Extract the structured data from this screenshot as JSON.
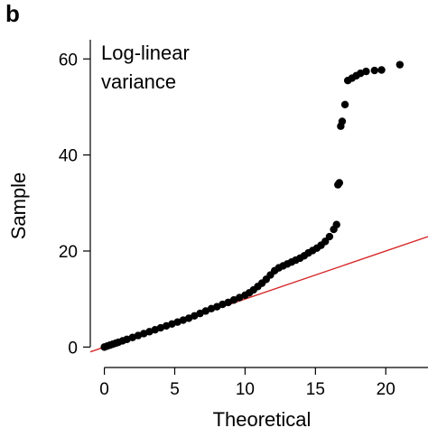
{
  "panel_label": "b",
  "chart_data": {
    "type": "scatter",
    "title": "",
    "annotation_lines": [
      "Log-linear",
      "variance"
    ],
    "xlabel": "Theoretical",
    "ylabel": "Sample",
    "xlim": [
      -1,
      23
    ],
    "ylim": [
      -2,
      64
    ],
    "x_ticks": [
      0,
      5,
      10,
      15,
      20
    ],
    "x_tick_labels": [
      "0",
      "5",
      "10",
      "15",
      "20"
    ],
    "y_ticks": [
      0,
      20,
      40,
      60
    ],
    "y_tick_labels": [
      "0",
      "20",
      "40",
      "60"
    ],
    "grid": false,
    "legend": "none",
    "reference_line": {
      "slope": 1.0,
      "intercept": 0,
      "color": "#d62728"
    },
    "points": {
      "color": "#000000",
      "x": [
        0,
        0.2,
        0.4,
        0.6,
        0.8,
        1,
        1.3,
        1.6,
        2,
        2.4,
        2.8,
        3.2,
        3.6,
        4,
        4.4,
        4.8,
        5.2,
        5.6,
        6,
        6.4,
        6.8,
        7.2,
        7.6,
        8,
        8.4,
        8.8,
        9.2,
        9.6,
        10,
        10.3,
        10.6,
        10.9,
        11.2,
        11.5,
        11.8,
        12.1,
        12.4,
        12.7,
        13,
        13.3,
        13.6,
        13.9,
        14.2,
        14.5,
        14.8,
        15.1,
        15.4,
        15.7,
        16,
        16.3,
        16.5,
        16.6,
        16.7,
        16.8,
        16.9,
        17.1,
        17.3,
        17.6,
        17.9,
        18.2,
        18.6,
        19.2,
        19.7,
        21
      ],
      "y": [
        0,
        0.2,
        0.4,
        0.6,
        0.8,
        1,
        1.3,
        1.6,
        2,
        2.4,
        2.8,
        3.2,
        3.6,
        4,
        4.4,
        4.8,
        5.2,
        5.6,
        6,
        6.5,
        7,
        7.5,
        8,
        8.4,
        8.9,
        9.3,
        9.8,
        10.3,
        10.8,
        11.3,
        11.9,
        12.6,
        13.3,
        14.1,
        15,
        15.9,
        16.5,
        16.9,
        17.3,
        17.7,
        18.1,
        18.5,
        19,
        19.6,
        20.1,
        20.6,
        21.2,
        22,
        23,
        24.5,
        25.5,
        33.8,
        34.2,
        46,
        47,
        50.5,
        55.5,
        56,
        56.5,
        57,
        57.4,
        57.6,
        57.7,
        58.8
      ]
    }
  }
}
